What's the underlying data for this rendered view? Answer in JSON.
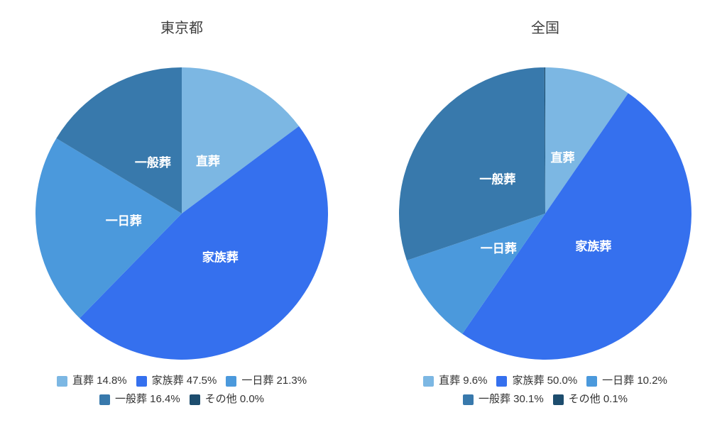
{
  "page": {
    "background": "#ffffff",
    "title_color": "#3f3f3f",
    "legend_text_color": "#333333",
    "slice_label_color": "#ffffff"
  },
  "chart_data": [
    {
      "type": "pie",
      "title": "東京都",
      "categories": [
        "直葬",
        "家族葬",
        "一日葬",
        "一般葬",
        "その他"
      ],
      "values": [
        14.8,
        47.5,
        21.3,
        16.4,
        0.0
      ],
      "unit": "%",
      "colors": [
        "#7cb7e3",
        "#3570ee",
        "#4b99dc",
        "#3879ac",
        "#1d4d6e"
      ],
      "legend_values": [
        "14.8%",
        "47.5%",
        "21.3%",
        "16.4%",
        "0.0%"
      ],
      "legend_position": "bottom",
      "start_angle_deg": 0,
      "direction": "clockwise",
      "slice_labels_shown": [
        "直葬",
        "家族葬",
        "一日葬",
        "一般葬"
      ]
    },
    {
      "type": "pie",
      "title": "全国",
      "categories": [
        "直葬",
        "家族葬",
        "一日葬",
        "一般葬",
        "その他"
      ],
      "values": [
        9.6,
        50.0,
        10.2,
        30.1,
        0.1
      ],
      "unit": "%",
      "colors": [
        "#7cb7e3",
        "#3570ee",
        "#4b99dc",
        "#3879ac",
        "#1d4d6e"
      ],
      "legend_values": [
        "9.6%",
        "50.0%",
        "10.2%",
        "30.1%",
        "0.1%"
      ],
      "legend_position": "bottom",
      "start_angle_deg": 0,
      "direction": "clockwise",
      "slice_labels_shown": [
        "直葬",
        "家族葬",
        "一日葬",
        "一般葬"
      ]
    }
  ]
}
